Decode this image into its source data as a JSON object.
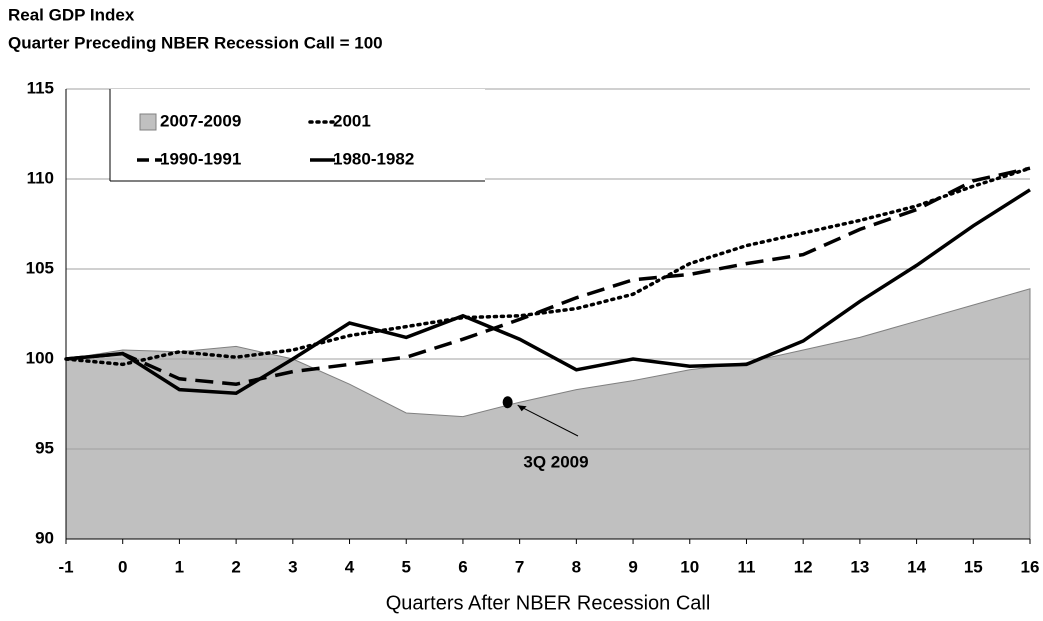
{
  "chart_data": {
    "type": "line",
    "title": "Real GDP Index",
    "subtitle": "Quarter Preceding NBER Recession Call = 100",
    "x_label": "Quarters After NBER Recession Call",
    "x": [
      -1,
      0,
      1,
      2,
      3,
      4,
      5,
      6,
      7,
      8,
      9,
      10,
      11,
      12,
      13,
      14,
      15,
      16
    ],
    "xlim": [
      -1,
      16
    ],
    "xticks": [
      -1,
      0,
      1,
      2,
      3,
      4,
      5,
      6,
      7,
      8,
      9,
      10,
      11,
      12,
      13,
      14,
      15,
      16
    ],
    "ylim": [
      90,
      115
    ],
    "yticks": [
      90,
      95,
      100,
      105,
      110,
      115
    ],
    "grid": true,
    "legend": "top-left",
    "series": [
      {
        "name": "2007-2009",
        "color": "#c0c0c0",
        "style": "area",
        "values": [
          100,
          100.5,
          100.4,
          100.7,
          100.0,
          98.6,
          97.0,
          96.8,
          97.6,
          98.3,
          98.8,
          99.4,
          99.8,
          100.5,
          101.2,
          102.1,
          103.0,
          103.9
        ]
      },
      {
        "name": "2001",
        "color": "#000000",
        "style": "dotted",
        "values": [
          100,
          99.7,
          100.4,
          100.1,
          100.5,
          101.3,
          101.8,
          102.3,
          102.4,
          102.8,
          103.6,
          105.3,
          106.3,
          107.0,
          107.7,
          108.5,
          109.6,
          110.6
        ]
      },
      {
        "name": "1990-1991",
        "color": "#000000",
        "style": "dashed",
        "values": [
          100,
          100.3,
          98.9,
          98.6,
          99.3,
          99.7,
          100.1,
          101.1,
          102.2,
          103.4,
          104.4,
          104.7,
          105.3,
          105.8,
          107.2,
          108.3,
          109.9,
          110.6
        ]
      },
      {
        "name": "1980-1982",
        "color": "#000000",
        "style": "solid",
        "values": [
          100,
          100.3,
          98.3,
          98.1,
          100.0,
          102.0,
          101.2,
          102.4,
          101.1,
          99.4,
          100.0,
          99.6,
          99.7,
          101.0,
          103.2,
          105.2,
          107.4,
          109.4
        ]
      }
    ],
    "annotation": {
      "text": "3Q 2009",
      "x": 7,
      "y": 97.6
    }
  }
}
